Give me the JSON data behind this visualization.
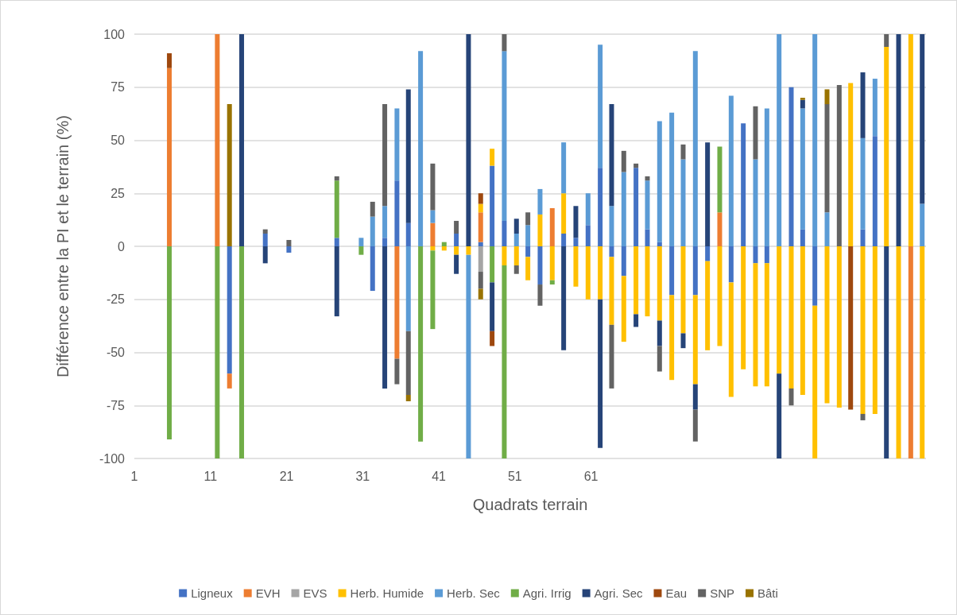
{
  "chart_data": {
    "type": "bar",
    "stacked": true,
    "xlabel": "Quadrats terrain",
    "ylabel": "Différence entre la PI et le terrain (%)",
    "xlim": [
      1,
      105
    ],
    "xticks": [
      1,
      11,
      21,
      31,
      41,
      51,
      61
    ],
    "ylim": [
      -100,
      100
    ],
    "yticks": [
      -100,
      -75,
      -50,
      -25,
      0,
      25,
      50,
      75,
      100
    ],
    "grid": "y",
    "legend": "bottom",
    "x": [
      5.6,
      7.2,
      8.8,
      10.4,
      11.9,
      13.5,
      15.1,
      16.6,
      18.2,
      19.8,
      21.3,
      22.9,
      24.5,
      26.0,
      27.6,
      29.2,
      30.8,
      32.3,
      33.9,
      35.5,
      37.0,
      38.6,
      40.2,
      41.7,
      43.3,
      44.9,
      46.5,
      48.0,
      49.6,
      51.2,
      52.7,
      54.3,
      55.9,
      57.4,
      59.0,
      60.6,
      62.2,
      63.7,
      65.3,
      66.9,
      68.4,
      70.0,
      71.6,
      73.1,
      74.7,
      76.3,
      77.9,
      79.4,
      81.0,
      82.6,
      84.1,
      85.7,
      87.3,
      88.8,
      90.4,
      92.0,
      93.6,
      95.1,
      96.7,
      98.3,
      99.8,
      101.4,
      103.0,
      104.5
    ],
    "series": [
      {
        "name": "Ligneux",
        "color": "#4472c4",
        "values": [
          null,
          null,
          null,
          null,
          null,
          -60,
          null,
          null,
          6,
          null,
          -3,
          null,
          null,
          null,
          4,
          null,
          null,
          -21,
          4,
          31,
          11,
          null,
          null,
          null,
          6,
          null,
          2,
          38,
          12,
          null,
          -5,
          -18,
          null,
          6,
          4,
          10,
          37,
          -5,
          -14,
          37,
          8,
          2,
          -23,
          null,
          -23,
          -7,
          null,
          -17,
          58,
          -8,
          -8,
          null,
          75,
          8,
          -28,
          null,
          null,
          null,
          8,
          52,
          null,
          null,
          null,
          null
        ]
      },
      {
        "name": "EVH",
        "color": "#ed7d31",
        "values": [
          84,
          null,
          null,
          null,
          100,
          -7,
          null,
          null,
          null,
          null,
          null,
          null,
          null,
          null,
          null,
          null,
          null,
          null,
          null,
          -53,
          null,
          null,
          11,
          null,
          null,
          null,
          14,
          null,
          null,
          null,
          null,
          null,
          18,
          null,
          null,
          null,
          null,
          null,
          null,
          null,
          null,
          null,
          null,
          null,
          null,
          null,
          16,
          null,
          null,
          null,
          null,
          null,
          null,
          null,
          null,
          null,
          null,
          null,
          null,
          null,
          null,
          null,
          -100,
          null
        ]
      },
      {
        "name": "EVS",
        "color": "#a5a5a5",
        "values": [
          null,
          null,
          null,
          null,
          null,
          null,
          null,
          null,
          null,
          null,
          null,
          null,
          null,
          null,
          null,
          null,
          null,
          null,
          null,
          null,
          null,
          null,
          null,
          null,
          null,
          null,
          -12,
          null,
          null,
          null,
          null,
          null,
          null,
          null,
          null,
          null,
          null,
          null,
          null,
          null,
          null,
          null,
          null,
          null,
          null,
          null,
          null,
          null,
          null,
          null,
          null,
          null,
          null,
          null,
          null,
          null,
          null,
          null,
          null,
          null,
          null,
          null,
          null,
          null
        ]
      },
      {
        "name": "Herb. Humide",
        "color": "#ffc000",
        "values": [
          null,
          null,
          null,
          null,
          null,
          null,
          null,
          null,
          null,
          null,
          null,
          null,
          null,
          null,
          null,
          null,
          null,
          null,
          null,
          null,
          null,
          null,
          -2,
          -2,
          -4,
          -4,
          4,
          8,
          -9,
          -9,
          -11,
          15,
          -16,
          19,
          -19,
          -25,
          -25,
          -32,
          -31,
          -32,
          -33,
          -35,
          -40,
          -41,
          -42,
          -42,
          -47,
          -54,
          -58,
          -58,
          -58,
          -60,
          -67,
          -70,
          -72,
          -74,
          -76,
          77,
          -79,
          -79,
          94,
          -100,
          100,
          -100
        ]
      },
      {
        "name": "Herb. Sec",
        "color": "#5b9bd5",
        "values": [
          null,
          null,
          null,
          null,
          null,
          null,
          null,
          null,
          null,
          null,
          null,
          null,
          null,
          null,
          null,
          null,
          4,
          14,
          15,
          34,
          -40,
          92,
          6,
          null,
          null,
          -96,
          null,
          null,
          80,
          6,
          10,
          12,
          null,
          24,
          null,
          15,
          58,
          19,
          35,
          null,
          23,
          57,
          63,
          41,
          92,
          null,
          null,
          71,
          null,
          41,
          65,
          100,
          null,
          57,
          100,
          16,
          null,
          null,
          43,
          27,
          null,
          null,
          null,
          20
        ]
      },
      {
        "name": "Agri. Irrig",
        "color": "#70ad47",
        "values": [
          -91,
          null,
          null,
          null,
          -100,
          null,
          -100,
          null,
          null,
          null,
          null,
          null,
          null,
          null,
          27,
          null,
          -4,
          null,
          null,
          null,
          null,
          -92,
          -37,
          2,
          null,
          null,
          null,
          -17,
          -91,
          null,
          null,
          null,
          -2,
          null,
          null,
          null,
          null,
          null,
          null,
          null,
          null,
          null,
          null,
          null,
          null,
          null,
          31,
          null,
          null,
          null,
          null,
          null,
          null,
          null,
          null,
          null,
          null,
          null,
          null,
          null,
          null,
          null,
          null,
          null
        ]
      },
      {
        "name": "Agri. Sec",
        "color": "#264478",
        "values": [
          null,
          null,
          null,
          null,
          null,
          null,
          100,
          null,
          -8,
          null,
          null,
          null,
          null,
          null,
          -33,
          null,
          null,
          null,
          -67,
          null,
          63,
          null,
          null,
          null,
          -9,
          100,
          null,
          -23,
          null,
          7,
          null,
          null,
          null,
          -49,
          15,
          null,
          -70,
          48,
          null,
          -6,
          null,
          -12,
          null,
          -7,
          -12,
          49,
          null,
          null,
          null,
          null,
          null,
          -40,
          null,
          4,
          null,
          null,
          null,
          null,
          31,
          null,
          -100,
          100,
          null,
          80
        ]
      },
      {
        "name": "Eau",
        "color": "#9e480e",
        "values": [
          7,
          null,
          null,
          null,
          null,
          null,
          null,
          null,
          null,
          null,
          null,
          null,
          null,
          null,
          null,
          null,
          null,
          null,
          null,
          null,
          null,
          null,
          null,
          null,
          null,
          null,
          5,
          -7,
          null,
          null,
          null,
          null,
          null,
          null,
          null,
          null,
          null,
          null,
          null,
          null,
          null,
          null,
          null,
          null,
          null,
          null,
          null,
          null,
          null,
          null,
          null,
          null,
          null,
          null,
          null,
          null,
          null,
          -77,
          null,
          null,
          null,
          null,
          null,
          null
        ]
      },
      {
        "name": "SNP",
        "color": "#636363",
        "values": [
          null,
          null,
          null,
          null,
          null,
          null,
          null,
          null,
          2,
          null,
          3,
          null,
          null,
          null,
          2,
          null,
          null,
          7,
          48,
          -12,
          -30,
          null,
          22,
          null,
          6,
          null,
          -8,
          null,
          8,
          -4,
          6,
          -10,
          null,
          null,
          null,
          null,
          null,
          -30,
          10,
          2,
          2,
          -12,
          null,
          7,
          -15,
          null,
          null,
          null,
          null,
          25,
          null,
          null,
          -8,
          null,
          null,
          51,
          76,
          null,
          -3,
          null,
          6,
          null,
          null,
          null
        ]
      },
      {
        "name": "Bâti",
        "color": "#997300",
        "values": [
          null,
          null,
          null,
          null,
          null,
          67,
          null,
          null,
          null,
          null,
          null,
          null,
          null,
          null,
          null,
          null,
          null,
          null,
          null,
          null,
          -3,
          null,
          null,
          null,
          null,
          null,
          -5,
          null,
          null,
          null,
          null,
          null,
          null,
          null,
          null,
          null,
          null,
          null,
          null,
          null,
          null,
          null,
          null,
          null,
          null,
          null,
          null,
          null,
          null,
          null,
          null,
          null,
          null,
          1,
          null,
          7,
          null,
          null,
          null,
          null,
          null,
          null,
          null,
          null
        ]
      }
    ]
  }
}
